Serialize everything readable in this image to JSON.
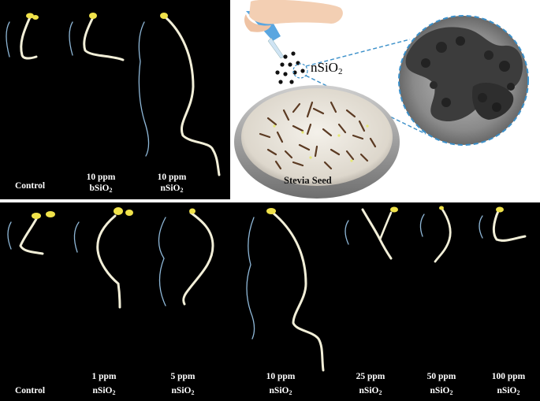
{
  "figure": {
    "top_panel": {
      "labels": [
        {
          "line1": "",
          "line2": "Control",
          "sub": ""
        },
        {
          "line1": "10 ppm",
          "line2": "bSiO",
          "sub": "2"
        },
        {
          "line1": "10 ppm",
          "line2": "nSiO",
          "sub": "2"
        }
      ]
    },
    "schematic": {
      "particle_label": "nSiO",
      "particle_sub": "2",
      "dish_label": "Stevia Seed"
    },
    "bottom_panel": {
      "labels": [
        {
          "line1": "",
          "line2": "Control",
          "sub": ""
        },
        {
          "line1": "1 ppm",
          "line2": "nSiO",
          "sub": "2"
        },
        {
          "line1": "5 ppm",
          "line2": "nSiO",
          "sub": "2"
        },
        {
          "line1": "10 ppm",
          "line2": "nSiO",
          "sub": "2"
        },
        {
          "line1": "25 ppm",
          "line2": "nSiO",
          "sub": "2"
        },
        {
          "line1": "50 ppm",
          "line2": "nSiO",
          "sub": "2"
        },
        {
          "line1": "100 ppm",
          "line2": "nSiO",
          "sub": "2"
        }
      ]
    },
    "colors": {
      "background": "#000000",
      "seedling": "#f2efd8",
      "cotyledon": "#f0e24a",
      "bracket": "#8fb8d8",
      "tem_border": "#3a8fc9"
    }
  }
}
